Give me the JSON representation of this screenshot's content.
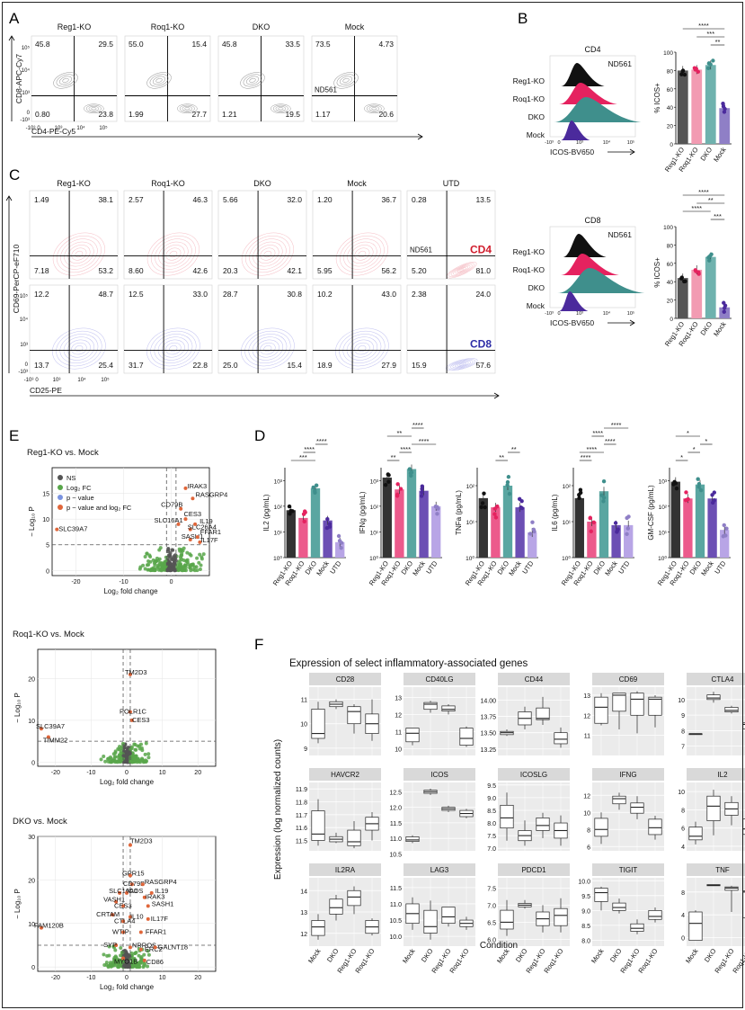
{
  "panels": {
    "A": "A",
    "B": "B",
    "C": "C",
    "D": "D",
    "E": "E",
    "F": "F"
  },
  "flowA": {
    "cols": [
      "Reg1-KO",
      "Roq1-KO",
      "DKO",
      "Mock"
    ],
    "quads": [
      [
        "45.8",
        "29.5",
        "0.80",
        "23.8"
      ],
      [
        "55.0",
        "15.4",
        "1.99",
        "27.7"
      ],
      [
        "45.8",
        "33.5",
        "1.21",
        "19.5"
      ],
      [
        "73.5",
        "4.73",
        "1.17",
        "20.6"
      ]
    ],
    "ylabel": "CD8-APC-Cy7",
    "xlabel": "CD4-PE-Cy5",
    "sample": "ND561"
  },
  "flowC": {
    "cols": [
      "Reg1-KO",
      "Roq1-KO",
      "DKO",
      "Mock",
      "UTD"
    ],
    "cd4": [
      [
        "1.49",
        "38.1",
        "7.18",
        "53.2"
      ],
      [
        "2.57",
        "46.3",
        "8.60",
        "42.6"
      ],
      [
        "5.66",
        "32.0",
        "20.3",
        "42.1"
      ],
      [
        "1.20",
        "36.7",
        "5.95",
        "56.2"
      ],
      [
        "0.28",
        "13.5",
        "5.20",
        "81.0"
      ]
    ],
    "cd8": [
      [
        "12.2",
        "48.7",
        "13.7",
        "25.4"
      ],
      [
        "12.5",
        "33.0",
        "31.7",
        "22.8"
      ],
      [
        "28.7",
        "30.8",
        "25.0",
        "15.4"
      ],
      [
        "10.2",
        "43.0",
        "18.9",
        "27.9"
      ],
      [
        "2.38",
        "24.0",
        "15.9",
        "57.6"
      ]
    ],
    "ylabel": "CD69-PerCP-eF710",
    "xlabel": "CD25-PE",
    "sample": "ND561",
    "row_cd4": "CD4",
    "row_cd8": "CD8"
  },
  "hist": {
    "rows": [
      "Reg1-KO",
      "Roq1-KO",
      "DKO",
      "Mock"
    ],
    "xlabel": "ICOS-BV650",
    "sample": "ND561",
    "b1": "CD4",
    "b2": "CD8"
  },
  "ticks": {
    "flow": [
      "-10³",
      "0",
      "10³",
      "10⁴",
      "10⁵"
    ],
    "pct": [
      "0",
      "20",
      "40",
      "60",
      "80",
      "100"
    ]
  },
  "chart_data": [
    {
      "type": "bar",
      "panel": "B",
      "title": "",
      "ylabel": "% ICOS+",
      "categories": [
        "Reg1-KO",
        "Roq1-KO",
        "DKO",
        "Mock"
      ],
      "values": [
        80,
        81,
        86,
        39
      ],
      "ylim": [
        0,
        100
      ],
      "sig": [
        "**",
        "***",
        "****"
      ]
    },
    {
      "type": "bar",
      "panel": "B",
      "title": "",
      "ylabel": "% ICOS+",
      "categories": [
        "Reg1-KO",
        "Roq1-KO",
        "DKO",
        "Mock"
      ],
      "values": [
        44,
        53,
        67,
        12
      ],
      "ylim": [
        0,
        100
      ],
      "sig": [
        "***",
        "****",
        "**",
        "****"
      ]
    },
    {
      "type": "bar",
      "panel": "D",
      "ylabel": "IL2 (pg/mL)",
      "categories": [
        "Reg1-KO",
        "Roq1-KO",
        "DKO",
        "Mock",
        "UTD"
      ],
      "values": [
        70,
        35,
        500,
        28,
        4
      ],
      "scale": "log",
      "ticks": [
        "10⁰",
        "10¹",
        "10²",
        "10³"
      ],
      "sig": [
        "***",
        "****",
        "****"
      ]
    },
    {
      "type": "bar",
      "panel": "D",
      "ylabel": "IFNg (pg/mL)",
      "categories": [
        "Reg1-KO",
        "Roq1-KO",
        "DKO",
        "Mock",
        "UTD"
      ],
      "values": [
        1300,
        450,
        2800,
        400,
        100
      ],
      "scale": "log",
      "ticks": [
        "10⁰",
        "10¹",
        "10²",
        "10³"
      ],
      "sig": [
        "**",
        "****",
        "****",
        "**",
        "****"
      ]
    },
    {
      "type": "bar",
      "panel": "D",
      "ylabel": "TNFa (pg/mL)",
      "categories": [
        "Reg1-KO",
        "Roq1-KO",
        "DKO",
        "Mock",
        "UTD"
      ],
      "values": [
        45,
        25,
        100,
        25,
        5
      ],
      "scale": "log",
      "ticks": [
        "10⁰",
        "10¹",
        "10²"
      ],
      "sig": [
        "**",
        "**"
      ]
    },
    {
      "type": "bar",
      "panel": "D",
      "ylabel": "IL6 (pg/mL)",
      "categories": [
        "Reg1-KO",
        "Roq1-KO",
        "DKO",
        "Mock",
        "UTD"
      ],
      "values": [
        45,
        10,
        70,
        8,
        8
      ],
      "scale": "log",
      "ticks": [
        "10⁰",
        "10¹",
        "10²"
      ],
      "sig": [
        "****",
        "****",
        "****",
        "****",
        "****"
      ]
    },
    {
      "type": "bar",
      "panel": "D",
      "ylabel": "GM-CSF (pg/mL)",
      "categories": [
        "Reg1-KO",
        "Roq1-KO",
        "DKO",
        "Mock",
        "UTD"
      ],
      "values": [
        900,
        200,
        700,
        200,
        12
      ],
      "scale": "log",
      "ticks": [
        "10⁰",
        "10¹",
        "10²",
        "10³"
      ],
      "sig": [
        "*",
        "*",
        "*",
        "*"
      ]
    },
    {
      "type": "scatter",
      "panel": "E",
      "title": "Reg1-KO vs. Mock",
      "xlabel": "Log₂ fold change",
      "ylabel": "− Log₁₀ P",
      "xticks": [
        "-20",
        "-10",
        "0"
      ],
      "yticks": [
        "0",
        "5",
        "10",
        "15"
      ],
      "legend": [
        "NS",
        "Log₂ FC",
        "p − value",
        "p − value and log₂ FC"
      ],
      "genes": [
        "IRAK3",
        "RASGRP4",
        "CD79B",
        "IL19",
        "CES3",
        "SLC16A1",
        "SLC26A4",
        "SASH1",
        "FFAR1",
        "IL17F",
        "SLC39A7"
      ]
    },
    {
      "type": "scatter",
      "panel": "E",
      "title": "Roq1-KO vs. Mock",
      "xlabel": "Log₂ fold change",
      "ylabel": "− Log₁₀ P",
      "xticks": [
        "-20",
        "-10",
        "0",
        "10",
        "20"
      ],
      "yticks": [
        "0",
        "10",
        "20"
      ],
      "genes": [
        "TM2D3",
        "POLR1C",
        "CES3",
        "SLC39A7",
        "TIMM22"
      ]
    },
    {
      "type": "scatter",
      "panel": "E",
      "title": "DKO vs. Mock",
      "xlabel": "Log₂ fold change",
      "ylabel": "− Log₁₀ P",
      "xticks": [
        "-20",
        "-10",
        "0",
        "10",
        "20"
      ],
      "yticks": [
        "0",
        "10",
        "20",
        "30"
      ],
      "genes": [
        "TM2D3",
        "GPR15",
        "CD79B",
        "RASGRP4",
        "SLC16A1",
        "ICOS",
        "IRAK3",
        "IL19",
        "VASH1",
        "CES3",
        "SASH1",
        "CRTAM",
        "IL10",
        "IL17F",
        "CTLA4",
        "WTIP",
        "FFAR1",
        "SYP",
        "NRROS",
        "ERC2",
        "GALNT18",
        "MYO1B",
        "CD86",
        "FAM120B"
      ]
    },
    {
      "type": "box",
      "panel": "F",
      "title": "Expression of select inflammatory-associated genes",
      "xlabel": "Condition",
      "ylabel": "Expression (log normalized counts)",
      "categories": [
        "Mock",
        "DKO",
        "Reg1-KO",
        "Roq1-KO"
      ],
      "genes": [
        {
          "name": "CD28",
          "ticks": [
            "9",
            "10",
            "11"
          ],
          "range": [
            8.7,
            11.5
          ],
          "boxes": [
            [
              9.2,
              9.4,
              9.6,
              10.6,
              10.9
            ],
            [
              10.6,
              10.7,
              10.8,
              10.9,
              11.0
            ],
            [
              9.6,
              10.0,
              10.5,
              10.7,
              10.8
            ],
            [
              9.3,
              9.6,
              10.0,
              10.4,
              11.0
            ]
          ]
        },
        {
          "name": "CD40LG",
          "ticks": [
            "10",
            "11",
            "12",
            "13"
          ],
          "range": [
            9.6,
            13.6
          ],
          "boxes": [
            [
              10.2,
              10.4,
              10.9,
              11.2,
              11.2
            ],
            [
              12.1,
              12.3,
              12.6,
              12.7,
              12.8
            ],
            [
              12.0,
              12.2,
              12.3,
              12.5,
              12.6
            ],
            [
              10.1,
              10.2,
              10.6,
              11.2,
              11.3
            ]
          ]
        },
        {
          "name": "CD44",
          "ticks": [
            "13.25",
            "13.50",
            "13.75",
            "14.00"
          ],
          "range": [
            13.15,
            14.2
          ],
          "boxes": [
            [
              13.45,
              13.47,
              13.5,
              13.52,
              13.55
            ],
            [
              13.55,
              13.62,
              13.72,
              13.82,
              13.9
            ],
            [
              13.62,
              13.7,
              13.72,
              13.88,
              14.05
            ],
            [
              13.27,
              13.33,
              13.4,
              13.5,
              13.58
            ]
          ]
        },
        {
          "name": "CD69",
          "ticks": [
            "11",
            "12",
            "13"
          ],
          "range": [
            10.0,
            13.4
          ],
          "boxes": [
            [
              11.5,
              11.6,
              12.4,
              12.9,
              13.1
            ],
            [
              11.3,
              12.2,
              13.0,
              13.1,
              13.1
            ],
            [
              11.1,
              12.0,
              12.8,
              13.1,
              13.2
            ],
            [
              11.4,
              12.0,
              12.8,
              12.9,
              13.0
            ]
          ]
        },
        {
          "name": "CTLA4",
          "ticks": [
            "7",
            "8",
            "9",
            "10"
          ],
          "range": [
            6.4,
            10.8
          ],
          "boxes": [
            [
              7.8,
              7.8,
              7.8,
              7.8,
              7.8
            ],
            [
              9.8,
              10.0,
              10.1,
              10.3,
              10.5
            ],
            [
              9.1,
              9.2,
              9.3,
              9.5,
              9.6
            ],
            [
              7.8,
              8.1,
              8.4,
              8.5,
              8.6
            ]
          ]
        },
        {
          "name": "HAVCR2",
          "ticks": [
            "11.5",
            "11.6",
            "11.7",
            "11.8",
            "11.9"
          ],
          "range": [
            11.42,
            11.95
          ],
          "boxes": [
            [
              11.46,
              11.5,
              11.55,
              11.73,
              11.82
            ],
            [
              11.48,
              11.49,
              11.51,
              11.53,
              11.56
            ],
            [
              11.44,
              11.46,
              11.49,
              11.58,
              11.65
            ],
            [
              11.5,
              11.58,
              11.63,
              11.68,
              11.72
            ]
          ]
        },
        {
          "name": "ICOS",
          "ticks": [
            "10.5",
            "11.0",
            "11.5",
            "12.0",
            "12.5"
          ],
          "range": [
            10.6,
            12.8
          ],
          "boxes": [
            [
              10.85,
              10.9,
              10.95,
              11.05,
              11.1
            ],
            [
              12.4,
              12.45,
              12.5,
              12.55,
              12.6
            ],
            [
              11.85,
              11.9,
              11.95,
              12.0,
              12.05
            ],
            [
              11.65,
              11.7,
              11.8,
              11.9,
              11.95
            ]
          ]
        },
        {
          "name": "ICOSLG",
          "ticks": [
            "7.0",
            "7.5",
            "8.0",
            "8.5",
            "9.0",
            "9.5"
          ],
          "range": [
            6.9,
            9.6
          ],
          "boxes": [
            [
              7.3,
              7.8,
              8.2,
              8.7,
              9.2
            ],
            [
              7.1,
              7.3,
              7.5,
              7.7,
              8.1
            ],
            [
              7.4,
              7.7,
              7.9,
              8.2,
              8.4
            ],
            [
              7.1,
              7.4,
              7.7,
              8.0,
              8.3
            ]
          ]
        },
        {
          "name": "IFNG",
          "ticks": [
            "6",
            "8",
            "10",
            "12"
          ],
          "range": [
            5.5,
            13.5
          ],
          "boxes": [
            [
              6.3,
              7.2,
              8.0,
              9.3,
              10.0
            ],
            [
              10.3,
              11.0,
              11.6,
              11.9,
              12.3
            ],
            [
              9.2,
              9.9,
              10.6,
              11.1,
              11.9
            ],
            [
              6.8,
              7.4,
              8.2,
              9.2,
              9.6
            ]
          ]
        },
        {
          "name": "IL2",
          "ticks": [
            "4",
            "6",
            "8",
            "10"
          ],
          "range": [
            3.5,
            11.0
          ],
          "boxes": [
            [
              4.2,
              4.7,
              5.1,
              6.1,
              6.7
            ],
            [
              5.2,
              6.8,
              8.4,
              9.5,
              10.2
            ],
            [
              6.3,
              7.4,
              8.1,
              8.8,
              9.5
            ],
            [
              4.8,
              5.3,
              5.9,
              7.0,
              7.9
            ]
          ]
        },
        {
          "name": "IL2RA",
          "ticks": [
            "12",
            "13",
            "14"
          ],
          "range": [
            11.4,
            14.6
          ],
          "boxes": [
            [
              11.7,
              11.9,
              12.3,
              12.6,
              12.9
            ],
            [
              12.6,
              12.9,
              13.2,
              13.6,
              13.8
            ],
            [
              12.9,
              13.3,
              13.7,
              14.0,
              14.2
            ],
            [
              11.9,
              12.0,
              12.3,
              12.6,
              12.7
            ]
          ]
        },
        {
          "name": "LAG3",
          "ticks": [
            "10.0",
            "10.5",
            "11.0",
            "11.5"
          ],
          "range": [
            9.7,
            11.8
          ],
          "boxes": [
            [
              10.2,
              10.4,
              10.7,
              11.0,
              11.2
            ],
            [
              9.9,
              10.1,
              10.3,
              10.8,
              11.1
            ],
            [
              10.3,
              10.4,
              10.6,
              10.9,
              10.9
            ],
            [
              10.2,
              10.3,
              10.4,
              10.5,
              10.6
            ]
          ]
        },
        {
          "name": "PDCD1",
          "ticks": [
            "6.0",
            "6.5",
            "7.0",
            "7.5"
          ],
          "range": [
            5.8,
            7.8
          ],
          "boxes": [
            [
              6.1,
              6.3,
              6.5,
              6.85,
              7.15
            ],
            [
              6.9,
              6.95,
              7.0,
              7.05,
              7.15
            ],
            [
              6.2,
              6.4,
              6.6,
              6.8,
              7.0
            ],
            [
              6.2,
              6.4,
              6.7,
              6.9,
              7.2
            ]
          ]
        },
        {
          "name": "TIGIT",
          "ticks": [
            "8.0",
            "8.5",
            "9.0",
            "9.5",
            "10.0"
          ],
          "range": [
            7.8,
            10.1
          ],
          "boxes": [
            [
              9.0,
              9.3,
              9.6,
              9.75,
              9.8
            ],
            [
              8.9,
              9.0,
              9.1,
              9.25,
              9.4
            ],
            [
              8.2,
              8.3,
              8.4,
              8.55,
              8.7
            ],
            [
              8.6,
              8.7,
              8.8,
              9.0,
              9.1
            ]
          ]
        },
        {
          "name": "TNF",
          "ticks": [
            "0",
            "4",
            "8"
          ],
          "range": [
            -1.5,
            10.5
          ],
          "boxes": [
            [
              -0.5,
              -0.5,
              2.5,
              4.5,
              4.8
            ],
            [
              9.1,
              9.1,
              9.2,
              9.3,
              9.3
            ],
            [
              4.5,
              8.3,
              8.7,
              8.9,
              9.1
            ],
            [
              3.0,
              3.5,
              8.0,
              8.2,
              8.3
            ]
          ]
        }
      ]
    }
  ]
}
